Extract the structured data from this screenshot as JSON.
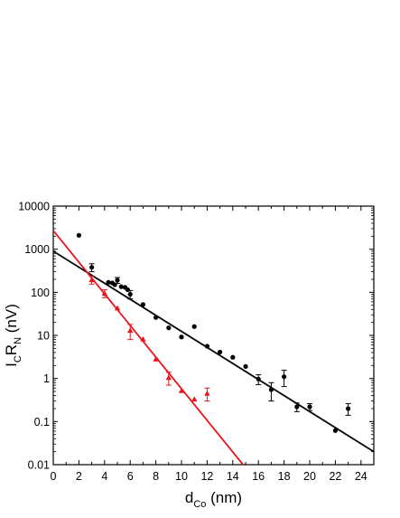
{
  "chart_data": {
    "type": "scatter",
    "title": "",
    "xlabel": {
      "main": "d",
      "sub": "Co",
      "unit": " (nm)"
    },
    "ylabel": {
      "p1": "I",
      "s1": "C",
      "p2": "R",
      "s2": "N",
      "unit": " (nV)"
    },
    "xlim": [
      0,
      25
    ],
    "ylim": [
      0.01,
      10000
    ],
    "yscale": "log",
    "xticks": [
      "0",
      "2",
      "4",
      "6",
      "8",
      "10",
      "12",
      "14",
      "16",
      "18",
      "20",
      "22",
      "24"
    ],
    "yticks": [
      "0.01",
      "0.1",
      "1",
      "10",
      "100",
      "1000",
      "10000"
    ],
    "grid": false,
    "legend": "none",
    "series": [
      {
        "color": "#000000",
        "marker": "circle",
        "points": [
          {
            "x": 2,
            "y": 2100
          },
          {
            "x": 3,
            "y": 380,
            "err": 80
          },
          {
            "x": 4.3,
            "y": 170
          },
          {
            "x": 4.6,
            "y": 165
          },
          {
            "x": 4.8,
            "y": 150
          },
          {
            "x": 5,
            "y": 190,
            "err": 30
          },
          {
            "x": 5.3,
            "y": 135
          },
          {
            "x": 5.6,
            "y": 130
          },
          {
            "x": 5.8,
            "y": 115
          },
          {
            "x": 6,
            "y": 90,
            "err": 20
          },
          {
            "x": 7,
            "y": 52
          },
          {
            "x": 8,
            "y": 26
          },
          {
            "x": 9,
            "y": 15
          },
          {
            "x": 10,
            "y": 9.2
          },
          {
            "x": 11,
            "y": 16
          },
          {
            "x": 12,
            "y": 5.6
          },
          {
            "x": 13,
            "y": 4.1
          },
          {
            "x": 14,
            "y": 3.1
          },
          {
            "x": 15,
            "y": 1.9
          },
          {
            "x": 16,
            "y": 0.97,
            "err": 0.25
          },
          {
            "x": 17,
            "y": 0.55,
            "err": 0.25
          },
          {
            "x": 18,
            "y": 1.1,
            "err": 0.45
          },
          {
            "x": 19,
            "y": 0.22,
            "err": 0.05
          },
          {
            "x": 20,
            "y": 0.22,
            "err": 0.04
          },
          {
            "x": 22,
            "y": 0.062
          },
          {
            "x": 23,
            "y": 0.2,
            "err": 0.06
          }
        ],
        "fit": {
          "x": [
            0,
            25
          ],
          "y": [
            900,
            0.02
          ]
        }
      },
      {
        "color": "#e8151b",
        "marker": "triangle",
        "points": [
          {
            "x": 3,
            "y": 195,
            "err": 40
          },
          {
            "x": 4,
            "y": 95,
            "err": 20
          },
          {
            "x": 5,
            "y": 43
          },
          {
            "x": 6,
            "y": 13,
            "err": 5
          },
          {
            "x": 7,
            "y": 8.2
          },
          {
            "x": 8,
            "y": 2.8
          },
          {
            "x": 9,
            "y": 1.05,
            "err": 0.35
          },
          {
            "x": 10,
            "y": 0.52
          },
          {
            "x": 11,
            "y": 0.33
          },
          {
            "x": 12,
            "y": 0.45,
            "err": 0.15
          }
        ],
        "fit": {
          "x": [
            0,
            14.8
          ],
          "y": [
            2700,
            0.01
          ]
        }
      }
    ]
  }
}
